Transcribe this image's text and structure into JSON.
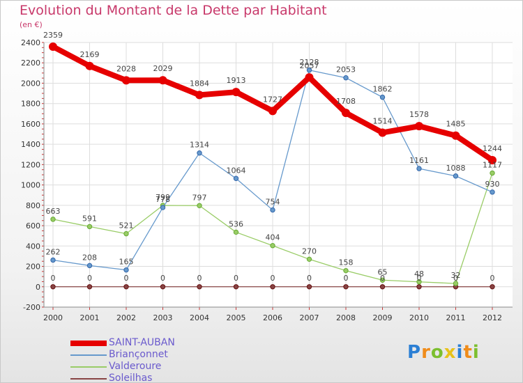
{
  "chart_data": {
    "type": "line",
    "title": "Evolution du Montant de la Dette par Habitant",
    "subtitle": "(en €)",
    "xlabel": "",
    "ylabel": "",
    "x": [
      "2000",
      "2001",
      "2002",
      "2003",
      "2004",
      "2005",
      "2006",
      "2007",
      "2008",
      "2009",
      "2010",
      "2011",
      "2012"
    ],
    "ylim": [
      -200,
      2400
    ],
    "yticks": [
      -200,
      0,
      200,
      400,
      600,
      800,
      1000,
      1200,
      1400,
      1600,
      1800,
      2000,
      2200,
      2400
    ],
    "grid": true,
    "legend_position": "bottom-left",
    "series": [
      {
        "name": "SAINT-AUBAN",
        "color": "#e60000",
        "values": [
          2359,
          2169,
          2028,
          2029,
          1884,
          1913,
          1727,
          2057,
          1708,
          1514,
          1578,
          1485,
          1244
        ]
      },
      {
        "name": "Briançonnet",
        "color": "#6699cc",
        "values": [
          262,
          208,
          165,
          778,
          1314,
          1064,
          754,
          2128,
          2053,
          1862,
          1161,
          1088,
          930
        ]
      },
      {
        "name": "Valderoure",
        "color": "#99cc66",
        "values": [
          663,
          591,
          521,
          799,
          797,
          536,
          404,
          270,
          158,
          65,
          48,
          32,
          1117
        ]
      },
      {
        "name": "Soleilhas",
        "color": "#884444",
        "values": [
          0,
          0,
          0,
          0,
          0,
          0,
          0,
          0,
          0,
          0,
          0,
          0,
          0
        ]
      }
    ]
  },
  "logo": {
    "letters": [
      "P",
      "r",
      "o",
      "x",
      "i",
      "t",
      "i"
    ],
    "colors": [
      "#2b7fd4",
      "#f08c1a",
      "#7cbf2f",
      "#e8c21a",
      "#2b7fd4",
      "#f08c1a",
      "#7cbf2f"
    ]
  }
}
